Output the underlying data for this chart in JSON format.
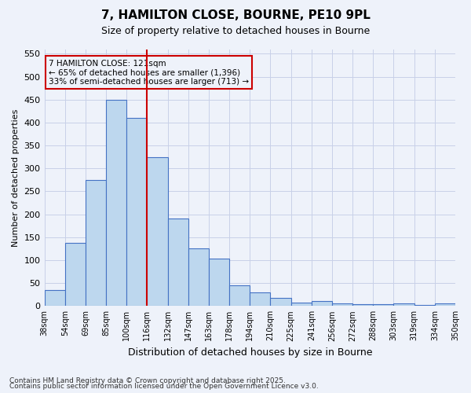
{
  "title1": "7, HAMILTON CLOSE, BOURNE, PE10 9PL",
  "title2": "Size of property relative to detached houses in Bourne",
  "xlabel": "Distribution of detached houses by size in Bourne",
  "ylabel": "Number of detached properties",
  "bin_labels": [
    "38sqm",
    "54sqm",
    "69sqm",
    "85sqm",
    "100sqm",
    "116sqm",
    "132sqm",
    "147sqm",
    "163sqm",
    "178sqm",
    "194sqm",
    "210sqm",
    "225sqm",
    "241sqm",
    "256sqm",
    "272sqm",
    "288sqm",
    "303sqm",
    "319sqm",
    "334sqm",
    "350sqm"
  ],
  "values": [
    35,
    137,
    275,
    450,
    410,
    325,
    190,
    125,
    103,
    45,
    30,
    18,
    7,
    10,
    5,
    4,
    4,
    5,
    2,
    5
  ],
  "bar_color": "#bdd7ee",
  "bar_edge_color": "#4472c4",
  "bg_color": "#eef2fa",
  "grid_color": "#c8d0e8",
  "vline_color": "#cc0000",
  "vline_bin": 5,
  "annotation_text": "7 HAMILTON CLOSE: 121sqm\n← 65% of detached houses are smaller (1,396)\n33% of semi-detached houses are larger (713) →",
  "annotation_box_color": "#cc0000",
  "ylim": [
    0,
    560
  ],
  "yticks": [
    0,
    50,
    100,
    150,
    200,
    250,
    300,
    350,
    400,
    450,
    500,
    550
  ],
  "footnote1": "Contains HM Land Registry data © Crown copyright and database right 2025.",
  "footnote2": "Contains public sector information licensed under the Open Government Licence v3.0."
}
